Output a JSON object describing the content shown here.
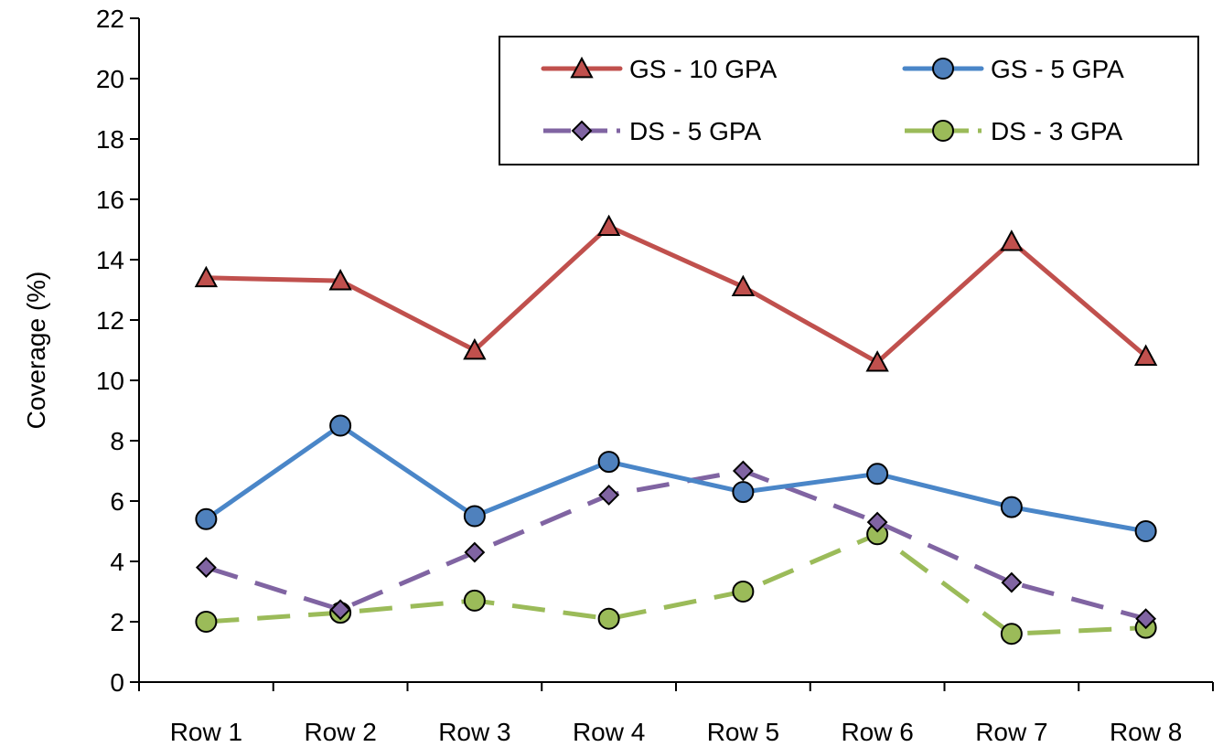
{
  "chart_data": {
    "type": "line",
    "title": "",
    "xlabel": "",
    "ylabel": "Coverage (%)",
    "ylim": [
      0,
      22
    ],
    "yticks": [
      0,
      2,
      4,
      6,
      8,
      10,
      12,
      14,
      16,
      18,
      20,
      22
    ],
    "categories": [
      "Row 1",
      "Row 2",
      "Row 3",
      "Row 4",
      "Row 5",
      "Row 6",
      "Row 7",
      "Row 8"
    ],
    "grid": false,
    "legend_position": "top-right",
    "series": [
      {
        "name": "GS - 10 GPA",
        "values": [
          13.4,
          13.3,
          11.0,
          15.1,
          13.1,
          10.6,
          14.6,
          10.8
        ],
        "color": "#c0504d",
        "marker_color": "#c0504d",
        "marker": "triangle",
        "dashed": false
      },
      {
        "name": "GS - 5 GPA",
        "values": [
          5.4,
          8.5,
          5.5,
          7.3,
          6.3,
          6.9,
          5.8,
          5.0
        ],
        "color": "#4a86c8",
        "marker_color": "#4f81bd",
        "marker": "circle",
        "dashed": false
      },
      {
        "name": "DS - 5 GPA",
        "values": [
          3.8,
          2.4,
          4.3,
          6.2,
          7.0,
          5.3,
          3.3,
          2.1
        ],
        "color": "#8064a2",
        "marker_color": "#8064a2",
        "marker": "diamond",
        "dashed": true
      },
      {
        "name": "DS - 3 GPA",
        "values": [
          2.0,
          2.3,
          2.7,
          2.1,
          3.0,
          4.9,
          1.6,
          1.8
        ],
        "color": "#9bbb59",
        "marker_color": "#9bbb59",
        "marker": "circle",
        "dashed": true
      }
    ]
  }
}
